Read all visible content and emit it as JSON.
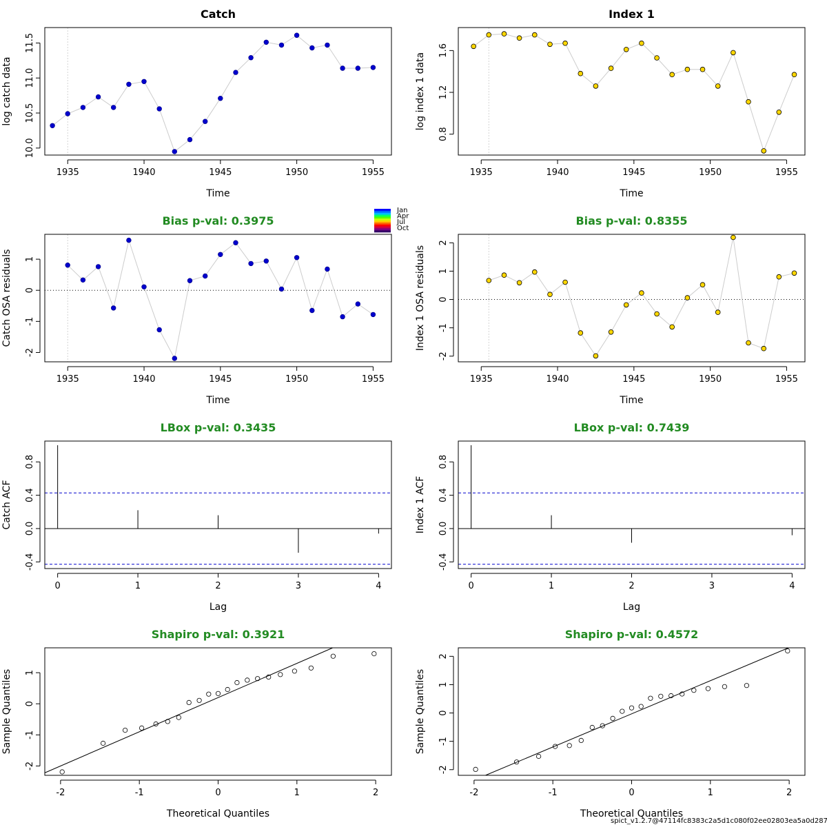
{
  "footer": "spict_v1.2.7@47114fc8383c2a5d1c080f02ee02803ea5a0d287",
  "colors": {
    "title_green": "#228b22",
    "catch_point_fill": "#0000cd",
    "index_point_fill": "#ffd700",
    "connect_line": "#cccccc",
    "acf_ci_line": "#0000cd"
  },
  "month_legend": {
    "labels": [
      "Jan",
      "Apr",
      "Jul",
      "Oct"
    ],
    "colors": [
      "#0000ff",
      "#0066ff",
      "#00bbff",
      "#00ff66",
      "#55ff00",
      "#ccff00",
      "#ffcc00",
      "#ff6600",
      "#ff0000",
      "#cc0044",
      "#800080",
      "#330066"
    ]
  },
  "chart_data": [
    {
      "type": "scatter",
      "panel": "catch-data",
      "title": "Catch",
      "xlabel": "Time",
      "ylabel": "log catch data",
      "xlim": [
        1933.5,
        1956.2
      ],
      "ylim": [
        9.9,
        11.72
      ],
      "xticks": [
        1935,
        1940,
        1945,
        1950,
        1955
      ],
      "yticks": [
        10.0,
        10.5,
        11.0,
        11.5
      ],
      "ytick_labels": [
        "10.0",
        "10.5",
        "11.0",
        "11.5"
      ],
      "vline": 1935,
      "point_style": "filled-blue",
      "connected": true,
      "x": [
        1934,
        1935,
        1936,
        1937,
        1938,
        1939,
        1940,
        1941,
        1942,
        1943,
        1944,
        1945,
        1946,
        1947,
        1948,
        1949,
        1950,
        1951,
        1952,
        1953,
        1954,
        1955
      ],
      "y": [
        10.32,
        10.49,
        10.58,
        10.73,
        10.58,
        10.91,
        10.95,
        10.56,
        9.95,
        10.12,
        10.38,
        10.71,
        11.08,
        11.29,
        11.51,
        11.47,
        11.61,
        11.43,
        11.47,
        11.14,
        11.14,
        11.15
      ]
    },
    {
      "type": "scatter",
      "panel": "index-data",
      "title": "Index 1",
      "xlabel": "Time",
      "ylabel": "log index 1 data",
      "xlim": [
        1933.5,
        1956.2
      ],
      "ylim": [
        0.6,
        1.82
      ],
      "xticks": [
        1935,
        1940,
        1945,
        1950,
        1955
      ],
      "yticks": [
        0.8,
        1.2,
        1.6
      ],
      "ytick_labels": [
        "0.8",
        "1.2",
        "1.6"
      ],
      "vline": 1935.5,
      "point_style": "filled-yellow",
      "connected": true,
      "x": [
        1934.5,
        1935.5,
        1936.5,
        1937.5,
        1938.5,
        1939.5,
        1940.5,
        1941.5,
        1942.5,
        1943.5,
        1944.5,
        1945.5,
        1946.5,
        1947.5,
        1948.5,
        1949.5,
        1950.5,
        1951.5,
        1952.5,
        1953.5,
        1954.5,
        1955.5
      ],
      "y": [
        1.64,
        1.75,
        1.76,
        1.72,
        1.75,
        1.66,
        1.67,
        1.38,
        1.26,
        1.43,
        1.61,
        1.67,
        1.53,
        1.37,
        1.42,
        1.42,
        1.26,
        1.58,
        1.11,
        0.64,
        1.01,
        1.37
      ]
    },
    {
      "type": "scatter",
      "panel": "catch-residuals",
      "title": "Bias p-val: 0.3975",
      "xlabel": "Time",
      "ylabel": "Catch OSA residuals",
      "xlim": [
        1933.5,
        1956.2
      ],
      "ylim": [
        -2.3,
        1.8
      ],
      "xticks": [
        1935,
        1940,
        1945,
        1950,
        1955
      ],
      "yticks": [
        -2,
        -1,
        0,
        1
      ],
      "ytick_labels": [
        "-2",
        "-1",
        "0",
        "1"
      ],
      "vline": 1935,
      "hline": 0,
      "point_style": "filled-blue",
      "connected": true,
      "x": [
        1935,
        1936,
        1937,
        1938,
        1939,
        1940,
        1941,
        1942,
        1943,
        1944,
        1945,
        1946,
        1947,
        1948,
        1949,
        1950,
        1951,
        1952,
        1953,
        1954,
        1955
      ],
      "y": [
        0.81,
        0.33,
        0.76,
        -0.57,
        1.61,
        0.11,
        -1.27,
        -2.19,
        0.31,
        0.46,
        1.15,
        1.53,
        0.86,
        0.94,
        0.04,
        1.05,
        -0.65,
        0.68,
        -0.85,
        -0.44,
        -0.78
      ]
    },
    {
      "type": "scatter",
      "panel": "index-residuals",
      "title": "Bias p-val: 0.8355",
      "xlabel": "Time",
      "ylabel": "Index 1 OSA residuals",
      "xlim": [
        1933.5,
        1956.2
      ],
      "ylim": [
        -2.2,
        2.3
      ],
      "xticks": [
        1935,
        1940,
        1945,
        1950,
        1955
      ],
      "yticks": [
        -2,
        -1,
        0,
        1,
        2
      ],
      "ytick_labels": [
        "-2",
        "-1",
        "0",
        "1",
        "2"
      ],
      "vline": 1935.5,
      "hline": 0,
      "point_style": "filled-yellow",
      "connected": true,
      "x": [
        1935.5,
        1936.5,
        1937.5,
        1938.5,
        1939.5,
        1940.5,
        1941.5,
        1942.5,
        1943.5,
        1944.5,
        1945.5,
        1946.5,
        1947.5,
        1948.5,
        1949.5,
        1950.5,
        1951.5,
        1952.5,
        1953.5,
        1954.5,
        1955.5
      ],
      "y": [
        0.67,
        0.86,
        0.59,
        0.97,
        0.18,
        0.61,
        -1.18,
        -1.99,
        -1.15,
        -0.19,
        0.23,
        -0.51,
        -0.97,
        0.06,
        0.52,
        -0.45,
        2.19,
        -1.53,
        -1.73,
        0.8,
        0.93
      ]
    },
    {
      "type": "bar",
      "panel": "catch-acf",
      "title": "LBox p-val: 0.3435",
      "xlabel": "Lag",
      "ylabel": "Catch ACF",
      "xlim": [
        -0.16,
        4.16
      ],
      "ylim": [
        -0.48,
        1.05
      ],
      "xticks": [
        0,
        1,
        2,
        3,
        4
      ],
      "yticks": [
        -0.4,
        0.0,
        0.4,
        0.8
      ],
      "ytick_labels": [
        "-0.4",
        "0.0",
        "0.4",
        "0.8"
      ],
      "ci": 0.428,
      "hline": 0,
      "categories": [
        0,
        1,
        2,
        3,
        4
      ],
      "values": [
        1.0,
        0.22,
        0.16,
        -0.29,
        -0.06
      ]
    },
    {
      "type": "bar",
      "panel": "index-acf",
      "title": "LBox p-val: 0.7439",
      "xlabel": "Lag",
      "ylabel": "Index 1 ACF",
      "xlim": [
        -0.16,
        4.16
      ],
      "ylim": [
        -0.48,
        1.05
      ],
      "xticks": [
        0,
        1,
        2,
        3,
        4
      ],
      "yticks": [
        -0.4,
        0.0,
        0.4,
        0.8
      ],
      "ytick_labels": [
        "-0.4",
        "0.0",
        "0.4",
        "0.8"
      ],
      "ci": 0.428,
      "hline": 0,
      "categories": [
        0,
        1,
        2,
        3,
        4
      ],
      "values": [
        1.0,
        0.16,
        -0.17,
        0.0,
        -0.08
      ]
    },
    {
      "type": "scatter",
      "panel": "catch-qq",
      "title": "Shapiro p-val: 0.3921",
      "xlabel": "Theoretical Quantiles",
      "ylabel": "Sample Quantiles",
      "xlim": [
        -2.2,
        2.2
      ],
      "ylim": [
        -2.3,
        1.8
      ],
      "xticks": [
        -2,
        -1,
        0,
        1,
        2
      ],
      "yticks": [
        -2,
        -1,
        0,
        1
      ],
      "ytick_labels": [
        "-2",
        "-1",
        "0",
        "1"
      ],
      "point_style": "open-circle",
      "qqline": {
        "intercept": 0.2,
        "slope": 1.1
      },
      "x": [
        -1.98,
        -1.46,
        -1.18,
        -0.97,
        -0.79,
        -0.64,
        -0.5,
        -0.37,
        -0.24,
        -0.12,
        0.0,
        0.12,
        0.24,
        0.37,
        0.5,
        0.64,
        0.79,
        0.97,
        1.18,
        1.46,
        1.98
      ],
      "y": [
        -2.19,
        -1.27,
        -0.85,
        -0.78,
        -0.65,
        -0.57,
        -0.44,
        0.04,
        0.11,
        0.31,
        0.33,
        0.46,
        0.68,
        0.76,
        0.81,
        0.86,
        0.94,
        1.05,
        1.15,
        1.53,
        1.61
      ]
    },
    {
      "type": "scatter",
      "panel": "index-qq",
      "title": "Shapiro p-val: 0.4572",
      "xlabel": "Theoretical Quantiles",
      "ylabel": "Sample Quantiles",
      "xlim": [
        -2.2,
        2.2
      ],
      "ylim": [
        -2.2,
        2.3
      ],
      "xticks": [
        -2,
        -1,
        0,
        1,
        2
      ],
      "yticks": [
        -2,
        -1,
        0,
        1,
        2
      ],
      "ytick_labels": [
        "-2",
        "-1",
        "0",
        "1",
        "2"
      ],
      "point_style": "open-circle",
      "qqline": {
        "intercept": -0.03,
        "slope": 1.17
      },
      "x": [
        -1.98,
        -1.46,
        -1.18,
        -0.97,
        -0.79,
        -0.64,
        -0.5,
        -0.37,
        -0.24,
        -0.12,
        0.0,
        0.12,
        0.24,
        0.37,
        0.5,
        0.64,
        0.79,
        0.97,
        1.18,
        1.46,
        1.98
      ],
      "y": [
        -1.99,
        -1.73,
        -1.53,
        -1.18,
        -1.15,
        -0.97,
        -0.51,
        -0.45,
        -0.19,
        0.06,
        0.18,
        0.23,
        0.52,
        0.59,
        0.61,
        0.67,
        0.8,
        0.86,
        0.93,
        0.97,
        2.19
      ]
    }
  ]
}
